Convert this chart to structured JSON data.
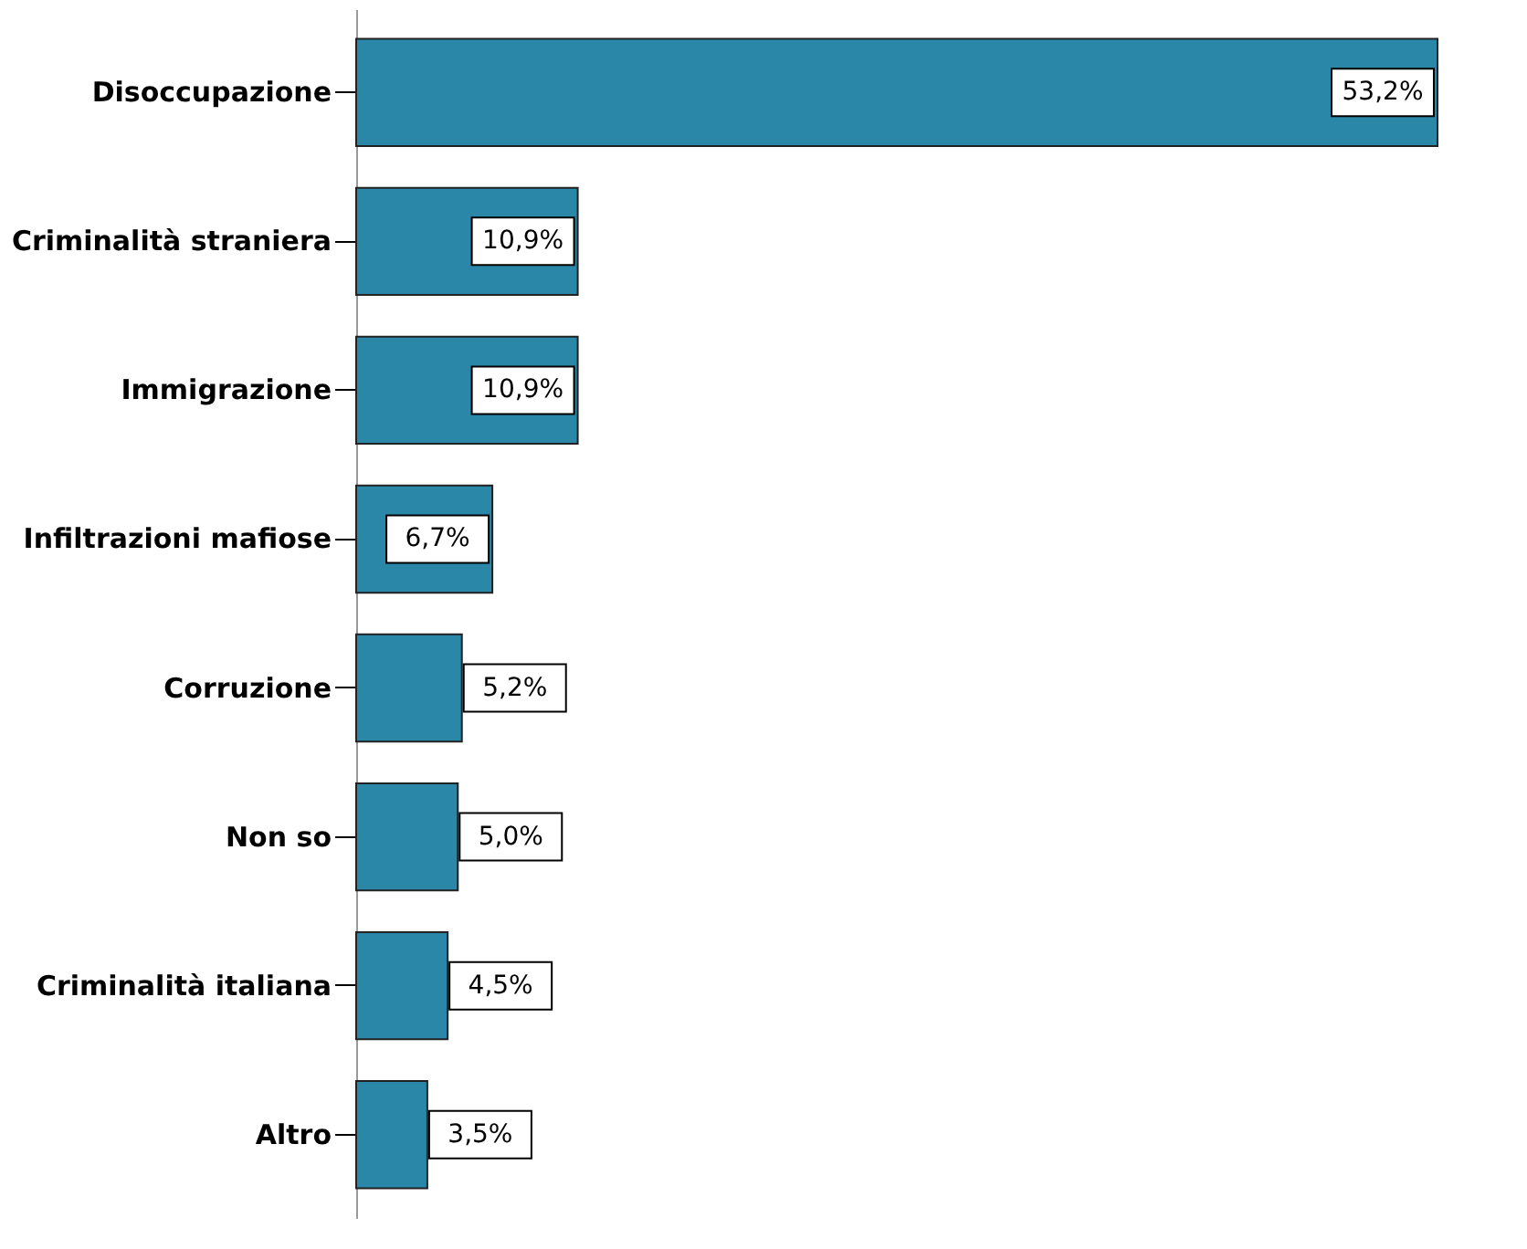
{
  "chart_data": {
    "type": "bar",
    "orientation": "horizontal",
    "categories": [
      "Disoccupazione",
      "Criminalità straniera",
      "Immigrazione",
      "Infiltrazioni mafiose",
      "Corruzione",
      "Non so",
      "Criminalità italiana",
      "Altro"
    ],
    "values": [
      53.2,
      10.9,
      10.9,
      6.7,
      5.2,
      5.0,
      4.5,
      3.5
    ],
    "value_labels": [
      "53,2%",
      "10,9%",
      "10,9%",
      "6,7%",
      "5,2%",
      "5,0%",
      "4,5%",
      "3,5%"
    ],
    "color": "#2a87a8"
  }
}
